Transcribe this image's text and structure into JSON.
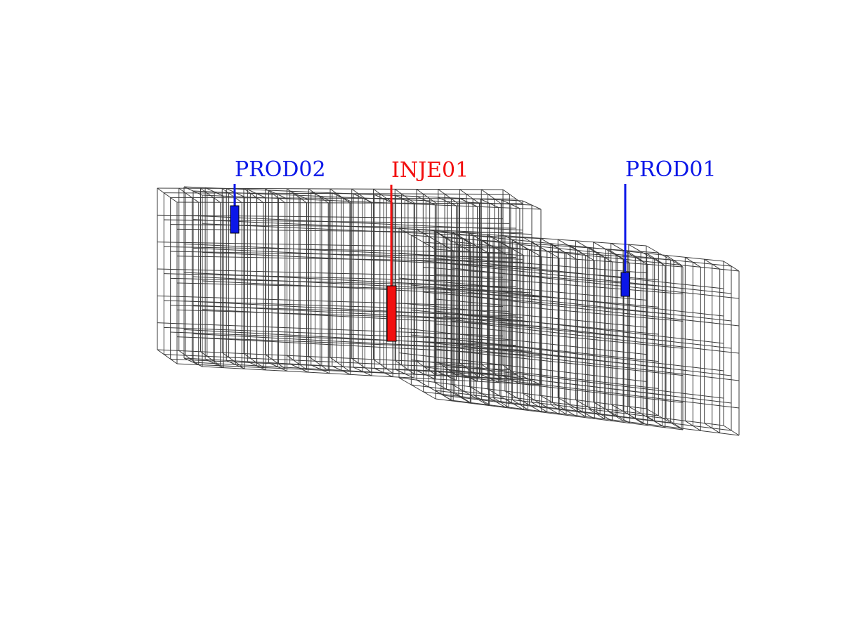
{
  "colors": {
    "producer": "#0b17e8",
    "injector": "#f21010",
    "grid": "#3a3a3a",
    "background": "#ffffff"
  },
  "wells": [
    {
      "id": "prod02",
      "label": "PROD02",
      "type": "producer"
    },
    {
      "id": "inje01",
      "label": "INJE01",
      "type": "injector"
    },
    {
      "id": "prod01",
      "label": "PROD01",
      "type": "producer"
    }
  ]
}
